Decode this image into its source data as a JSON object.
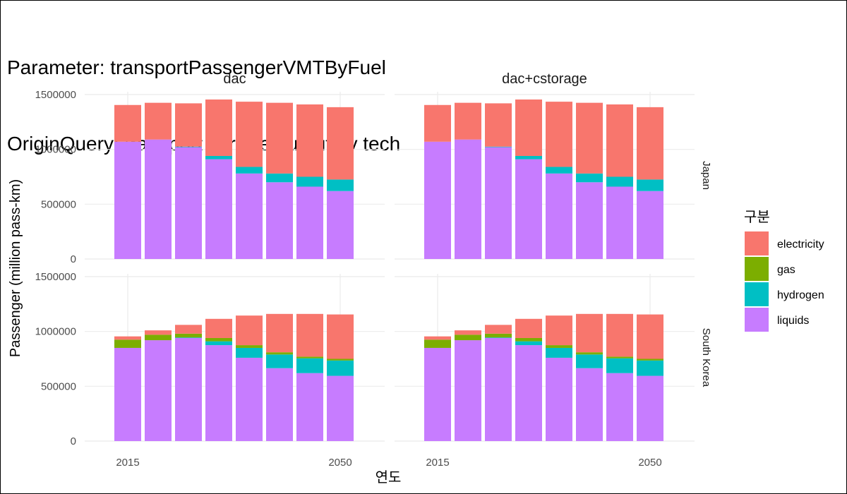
{
  "title_lines": [
    "Parameter: transportPassengerVMTByFuel",
    "OriginQuery: transport service output by tech"
  ],
  "chart_data": {
    "type": "bar",
    "stacked": true,
    "xlabel": "연도",
    "ylabel": "Passenger (million pass-km)",
    "x": [
      2015,
      2020,
      2025,
      2030,
      2035,
      2040,
      2045,
      2050
    ],
    "x_ticks": [
      "2015",
      "2050"
    ],
    "y_ticks": [
      0,
      500000,
      1000000,
      1500000
    ],
    "ylim": [
      0,
      1500000
    ],
    "grid": true,
    "legend": {
      "title": "구분",
      "position": "right"
    },
    "columns": [
      "dac",
      "dac+cstorage"
    ],
    "rows": [
      "Japan",
      "South Korea"
    ],
    "series_colors": {
      "electricity": "#F8766D",
      "gas": "#7CAE00",
      "hydrogen": "#00BFC4",
      "liquids": "#C77CFF"
    },
    "series_order": [
      "liquids",
      "hydrogen",
      "gas",
      "electricity"
    ],
    "legend_order": [
      "electricity",
      "gas",
      "hydrogen",
      "liquids"
    ],
    "panels": [
      {
        "column": "dac",
        "row": "Japan",
        "series": [
          {
            "name": "liquids",
            "values": [
              1070000,
              1090000,
              1020000,
              910000,
              780000,
              700000,
              660000,
              620000
            ]
          },
          {
            "name": "hydrogen",
            "values": [
              0,
              0,
              5000,
              30000,
              60000,
              80000,
              90000,
              105000
            ]
          },
          {
            "name": "gas",
            "values": [
              0,
              0,
              0,
              0,
              0,
              0,
              0,
              0
            ]
          },
          {
            "name": "electricity",
            "values": [
              335000,
              335000,
              395000,
              515000,
              595000,
              645000,
              660000,
              660000
            ]
          }
        ]
      },
      {
        "column": "dac+cstorage",
        "row": "Japan",
        "series": [
          {
            "name": "liquids",
            "values": [
              1070000,
              1090000,
              1020000,
              910000,
              780000,
              700000,
              660000,
              620000
            ]
          },
          {
            "name": "hydrogen",
            "values": [
              0,
              0,
              5000,
              30000,
              60000,
              80000,
              90000,
              105000
            ]
          },
          {
            "name": "gas",
            "values": [
              0,
              0,
              0,
              0,
              0,
              0,
              0,
              0
            ]
          },
          {
            "name": "electricity",
            "values": [
              335000,
              335000,
              395000,
              515000,
              595000,
              645000,
              660000,
              660000
            ]
          }
        ]
      },
      {
        "column": "dac",
        "row": "South Korea",
        "series": [
          {
            "name": "liquids",
            "values": [
              850000,
              920000,
              940000,
              875000,
              760000,
              665000,
              620000,
              595000
            ]
          },
          {
            "name": "hydrogen",
            "values": [
              0,
              0,
              5000,
              35000,
              90000,
              125000,
              135000,
              140000
            ]
          },
          {
            "name": "gas",
            "values": [
              75000,
              50000,
              35000,
              30000,
              25000,
              20000,
              15000,
              15000
            ]
          },
          {
            "name": "electricity",
            "values": [
              30000,
              40000,
              80000,
              175000,
              270000,
              350000,
              390000,
              405000
            ]
          }
        ]
      },
      {
        "column": "dac+cstorage",
        "row": "South Korea",
        "series": [
          {
            "name": "liquids",
            "values": [
              850000,
              920000,
              940000,
              875000,
              760000,
              665000,
              620000,
              595000
            ]
          },
          {
            "name": "hydrogen",
            "values": [
              0,
              0,
              5000,
              35000,
              90000,
              125000,
              135000,
              140000
            ]
          },
          {
            "name": "gas",
            "values": [
              75000,
              50000,
              35000,
              30000,
              25000,
              20000,
              15000,
              15000
            ]
          },
          {
            "name": "electricity",
            "values": [
              30000,
              40000,
              80000,
              175000,
              270000,
              350000,
              390000,
              405000
            ]
          }
        ]
      }
    ]
  }
}
